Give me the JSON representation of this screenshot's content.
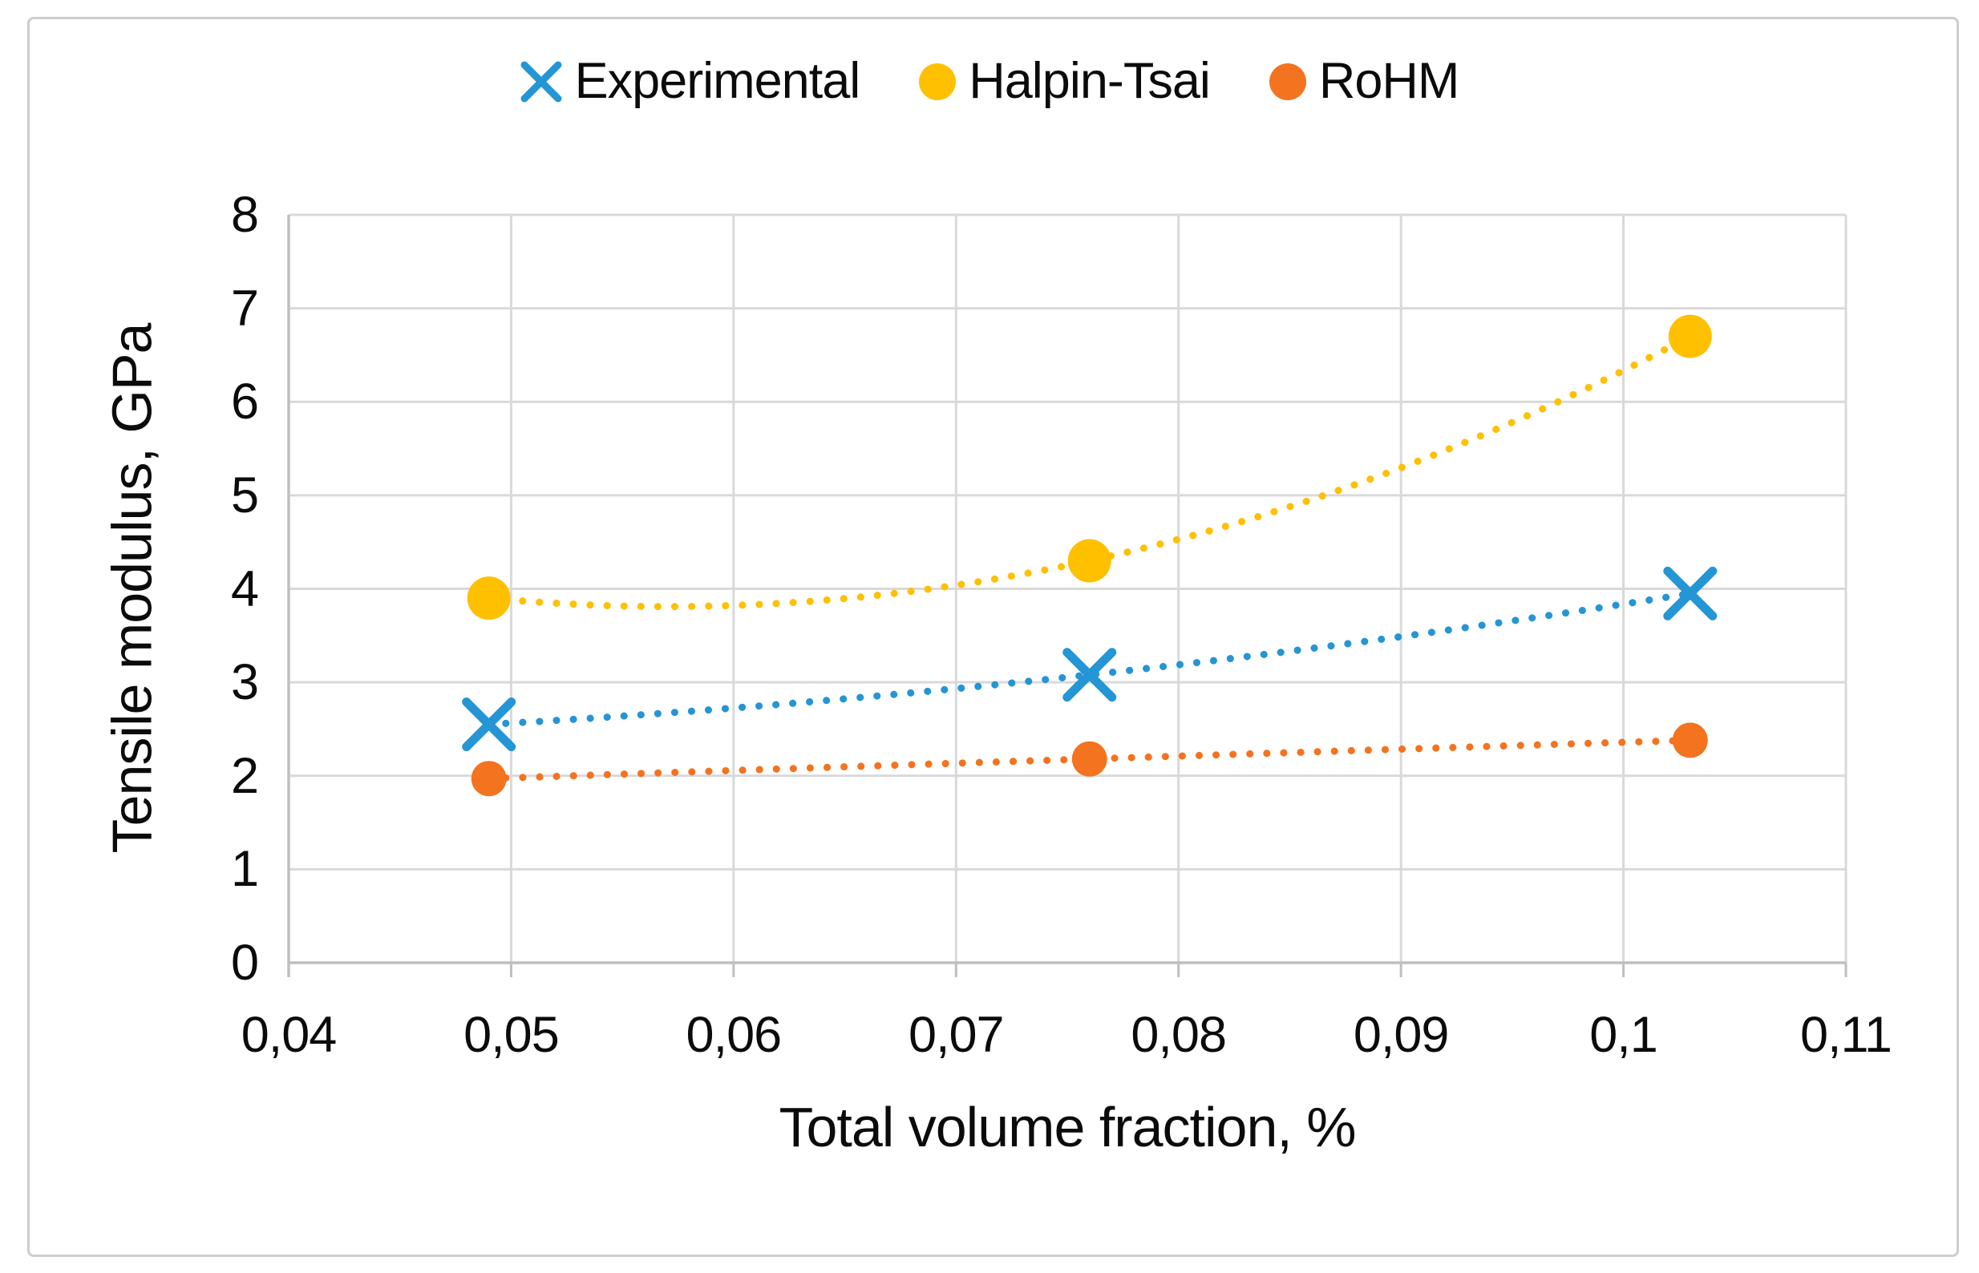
{
  "figure": {
    "background": "#ffffff",
    "border_color": "#cdcdcd"
  },
  "chart_data": {
    "type": "scatter",
    "title": "",
    "xlabel": "Total volume fraction, %",
    "ylabel": "Tensile modulus, GPa",
    "xlim": [
      0.04,
      0.11
    ],
    "ylim": [
      0,
      8
    ],
    "x_tick_values": [
      0.04,
      0.05,
      0.06,
      0.07,
      0.08,
      0.09,
      0.1,
      0.11
    ],
    "x_tick_labels": [
      "0,04",
      "0,05",
      "0,06",
      "0,07",
      "0,08",
      "0,09",
      "0,1",
      "0,11"
    ],
    "y_tick_values": [
      0,
      1,
      2,
      3,
      4,
      5,
      6,
      7,
      8
    ],
    "y_tick_labels": [
      "0",
      "1",
      "2",
      "3",
      "4",
      "5",
      "6",
      "7",
      "8"
    ],
    "decimal_separator": ",",
    "grid": true,
    "legend_position": "top",
    "grid_color": "#d9d9d9",
    "axis_color": "#bfbfbf",
    "text_color": "#0b0b0b",
    "series": [
      {
        "name": "Experimental",
        "marker": "x",
        "color": "#2495d5",
        "line_style": "dotted",
        "x": [
          0.049,
          0.076,
          0.103
        ],
        "y": [
          2.55,
          3.08,
          3.95
        ],
        "marker_size": 28
      },
      {
        "name": "Halpin-Tsai",
        "marker": "circle",
        "color": "#ffc000",
        "line_style": "dotted",
        "x": [
          0.049,
          0.076,
          0.103
        ],
        "y": [
          3.9,
          4.3,
          6.7
        ],
        "marker_size": 27
      },
      {
        "name": "RoHM",
        "marker": "circle",
        "color": "#f4731f",
        "line_style": "dotted",
        "x": [
          0.049,
          0.076,
          0.103
        ],
        "y": [
          1.97,
          2.18,
          2.38
        ],
        "marker_size": 22
      }
    ]
  }
}
